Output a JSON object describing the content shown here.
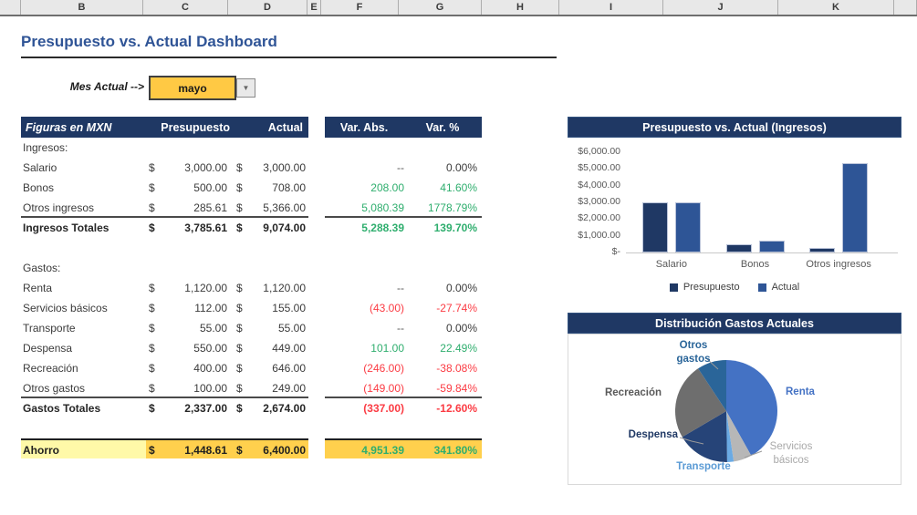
{
  "sheet": {
    "column_letters": [
      "",
      "B",
      "C",
      "D",
      "E",
      "F",
      "G",
      "H",
      "I",
      "J",
      "K",
      ""
    ]
  },
  "header": {
    "title": "Presupuesto vs. Actual Dashboard"
  },
  "selector": {
    "label": "Mes Actual -->",
    "value": "mayo",
    "dropdown_icon": "chevron-down-icon"
  },
  "colors": {
    "navy": "#1f3864",
    "title_blue": "#2f5496",
    "positive": "#2fae6e",
    "negative": "#fb3b43",
    "neutral": "#595959",
    "gold": "#ffd04d",
    "pale_yellow": "#fff9a8",
    "selector_yellow": "#ffc944"
  },
  "table": {
    "header": {
      "figures": "Figuras en MXN",
      "budget": "Presupuesto",
      "actual": "Actual",
      "var_abs": "Var. Abs.",
      "var_pct": "Var. %"
    },
    "currency_symbol": "$",
    "rows": [
      {
        "type": "section",
        "label": "Ingresos:"
      },
      {
        "type": "item",
        "label": "Salario",
        "budget": "3,000.00",
        "actual": "3,000.00",
        "var_abs": "--",
        "var_pct": "0.00%",
        "var_state": "neutral"
      },
      {
        "type": "item",
        "label": "Bonos",
        "budget": "500.00",
        "actual": "708.00",
        "var_abs": "208.00",
        "var_pct": "41.60%",
        "var_state": "pos"
      },
      {
        "type": "item",
        "label": "Otros ingresos",
        "budget": "285.61",
        "actual": "5,366.00",
        "var_abs": "5,080.39",
        "var_pct": "1778.79%",
        "var_state": "pos",
        "rule": true
      },
      {
        "type": "total",
        "label": "Ingresos Totales",
        "budget": "3,785.61",
        "actual": "9,074.00",
        "var_abs": "5,288.39",
        "var_pct": "139.70%",
        "var_state": "pos"
      },
      {
        "type": "blank"
      },
      {
        "type": "section",
        "label": "Gastos:"
      },
      {
        "type": "item",
        "label": "Renta",
        "budget": "1,120.00",
        "actual": "1,120.00",
        "var_abs": "--",
        "var_pct": "0.00%",
        "var_state": "neutral"
      },
      {
        "type": "item",
        "label": "Servicios básicos",
        "budget": "112.00",
        "actual": "155.00",
        "var_abs": "(43.00)",
        "var_pct": "-27.74%",
        "var_state": "neg"
      },
      {
        "type": "item",
        "label": "Transporte",
        "budget": "55.00",
        "actual": "55.00",
        "var_abs": "--",
        "var_pct": "0.00%",
        "var_state": "neutral"
      },
      {
        "type": "item",
        "label": "Despensa",
        "budget": "550.00",
        "actual": "449.00",
        "var_abs": "101.00",
        "var_pct": "22.49%",
        "var_state": "pos"
      },
      {
        "type": "item",
        "label": "Recreación",
        "budget": "400.00",
        "actual": "646.00",
        "var_abs": "(246.00)",
        "var_pct": "-38.08%",
        "var_state": "neg"
      },
      {
        "type": "item",
        "label": "Otros gastos",
        "budget": "100.00",
        "actual": "249.00",
        "var_abs": "(149.00)",
        "var_pct": "-59.84%",
        "var_state": "neg",
        "rule": true
      },
      {
        "type": "total",
        "label": "Gastos Totales",
        "budget": "2,337.00",
        "actual": "2,674.00",
        "var_abs": "(337.00)",
        "var_pct": "-12.60%",
        "var_state": "neg"
      },
      {
        "type": "blank"
      },
      {
        "type": "ahorro",
        "label": "Ahorro",
        "budget": "1,448.61",
        "actual": "6,400.00",
        "var_abs": "4,951.39",
        "var_pct": "341.80%",
        "var_state": "pos"
      }
    ]
  },
  "chart_data": [
    {
      "type": "bar",
      "title": "Presupuesto vs. Actual (Ingresos)",
      "categories": [
        "Salario",
        "Bonos",
        "Otros ingresos"
      ],
      "series": [
        {
          "name": "Presupuesto",
          "color": "#1f3864",
          "values": [
            3000,
            500,
            285.61
          ]
        },
        {
          "name": "Actual",
          "color": "#2e5596",
          "values": [
            3000,
            708,
            5366
          ]
        }
      ],
      "ylim": [
        0,
        6000
      ],
      "ytick_labels": [
        "$6,000.00",
        "$5,000.00",
        "$4,000.00",
        "$3,000.00",
        "$2,000.00",
        "$1,000.00",
        "$-"
      ],
      "grid": false,
      "legend_position": "bottom"
    },
    {
      "type": "pie",
      "title": "Distribución Gastos Actuales",
      "labels": [
        "Renta",
        "Servicios básicos",
        "Transporte",
        "Despensa",
        "Recreación",
        "Otros gastos"
      ],
      "values": [
        1120,
        155,
        55,
        449,
        646,
        249
      ],
      "colors": [
        "#4472c4",
        "#b7b7b7",
        "#6aaae4",
        "#264478",
        "#6e6e6e",
        "#2a6599"
      ],
      "label_colors": [
        "#4472c4",
        "#a9a9a9",
        "#5b9bd5",
        "#1f3864",
        "#595959",
        "#2a6599"
      ],
      "start_angle": "12-oclock-clockwise"
    }
  ]
}
